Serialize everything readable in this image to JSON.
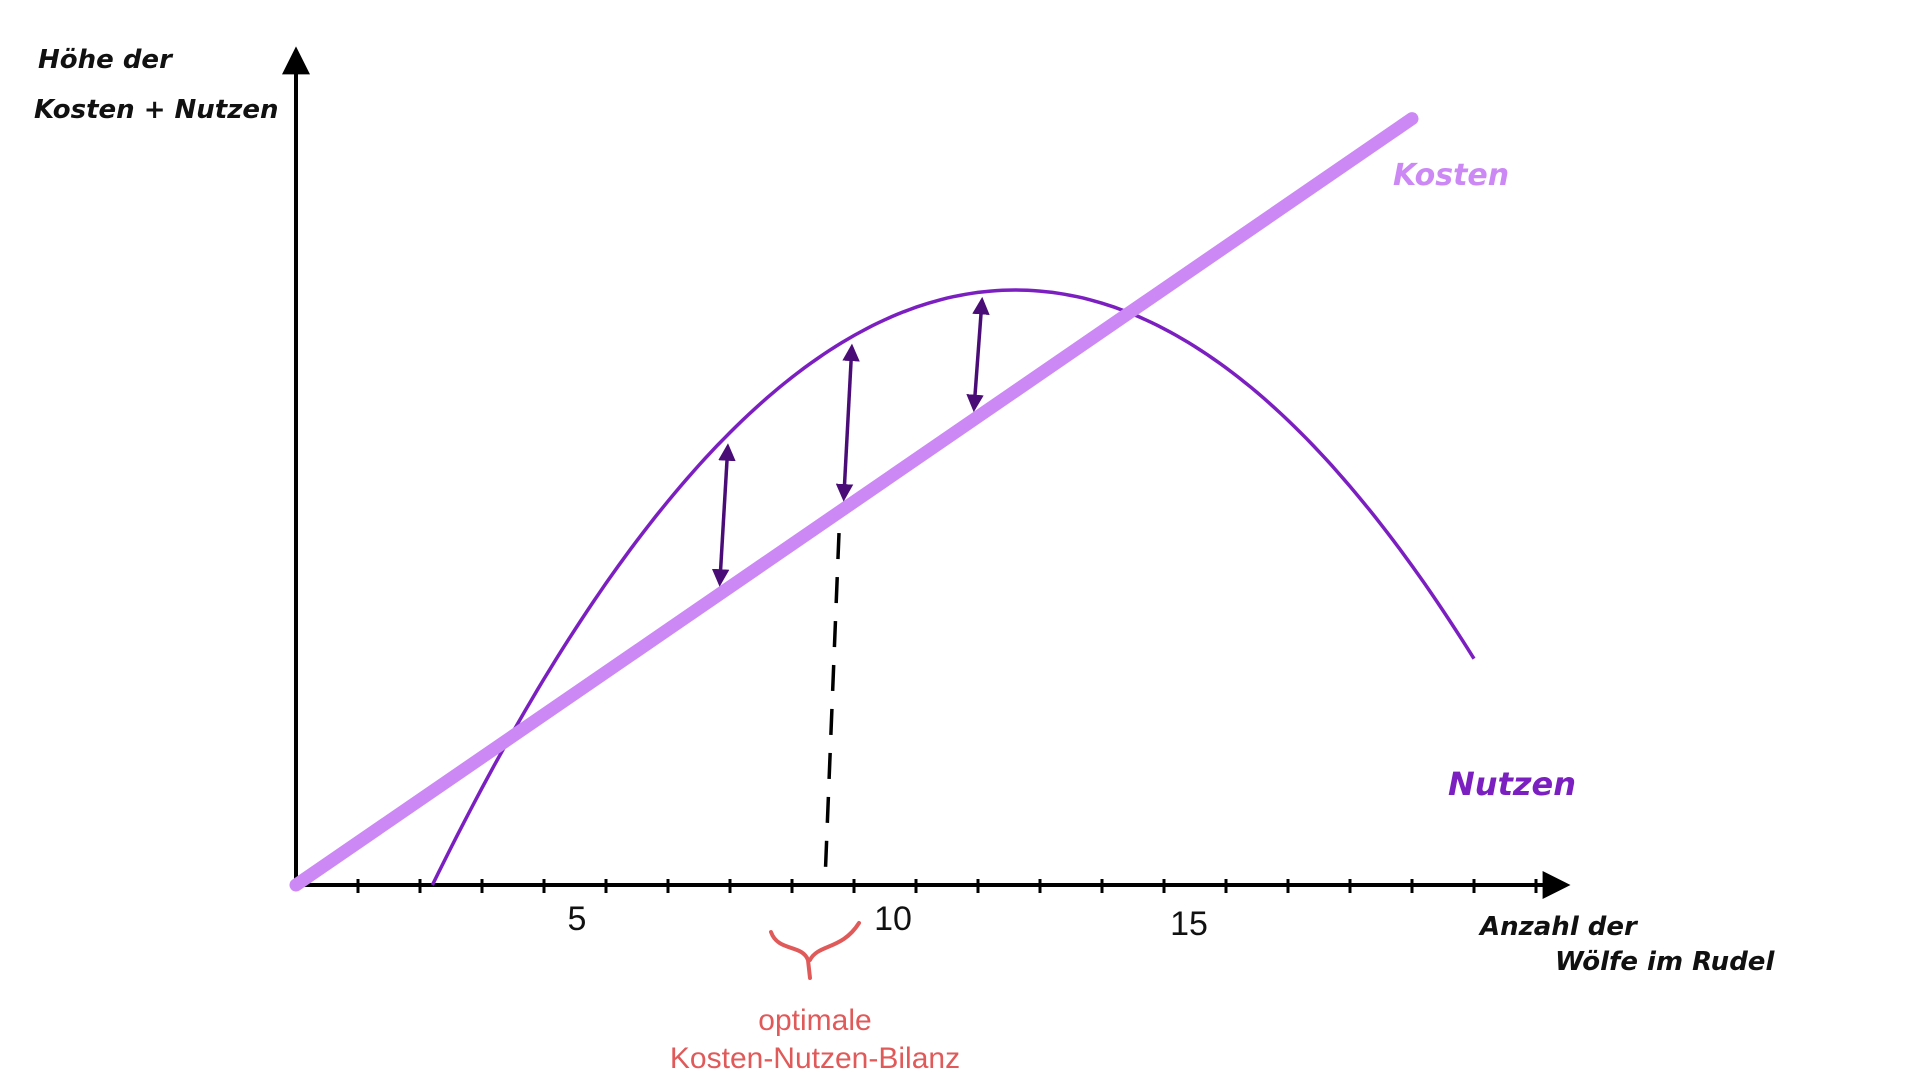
{
  "chart_data": {
    "type": "line",
    "ylabel_lines": [
      "Höhe der",
      "Kosten + Nutzen"
    ],
    "xlabel_lines": [
      "Anzahl der",
      "Wölfe im Rudel"
    ],
    "x_tick_labels": [
      "5",
      "10",
      "15"
    ],
    "series": [
      {
        "name": "Kosten",
        "color": "#cc88f5",
        "kind": "linear",
        "points": [
          [
            0,
            0
          ],
          [
            18,
            16.1
          ]
        ]
      },
      {
        "name": "Nutzen",
        "color": "#7b1fc1",
        "kind": "parabola",
        "x_start": 2.2,
        "x_end": 19,
        "vertex": [
          11.6,
          12.5
        ]
      }
    ],
    "xlim": [
      0,
      21
    ],
    "ylim": [
      0,
      19
    ],
    "difference_arrows_x": [
      6.9,
      8.9,
      11.0
    ],
    "optimum": {
      "x": 8.5,
      "label_lines": [
        "optimale",
        "Kosten-Nutzen-Bilanz"
      ],
      "color": "#e05a5a"
    },
    "axis_color": "#000000",
    "arrow_color": "#4a0d78"
  }
}
